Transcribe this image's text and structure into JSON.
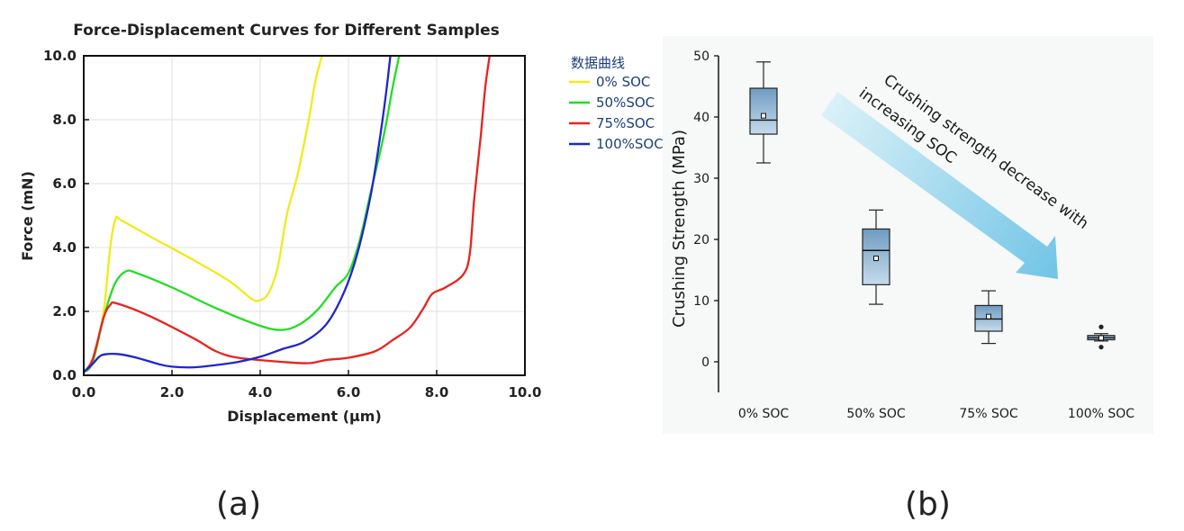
{
  "chart_data": [
    {
      "type": "line",
      "title": "Force-Displacement Curves for Different Samples",
      "xlabel": "Displacement (μm)",
      "ylabel": "Force (mN)",
      "xlim": [
        0,
        10
      ],
      "ylim": [
        0,
        10
      ],
      "xticks": [
        "0.0",
        "2.0",
        "4.0",
        "6.0",
        "8.0",
        "10.0"
      ],
      "yticks": [
        "0.0",
        "2.0",
        "4.0",
        "6.0",
        "8.0",
        "10.0"
      ],
      "grid": true,
      "legend": {
        "title": "数据曲线",
        "placement": "outside right"
      },
      "series": [
        {
          "name": "0% SOC",
          "color": "#f2ea1a",
          "points": [
            [
              0,
              0.1
            ],
            [
              0.2,
              0.4
            ],
            [
              0.45,
              2.0
            ],
            [
              0.6,
              4.0
            ],
            [
              0.72,
              4.9
            ],
            [
              0.85,
              4.85
            ],
            [
              1.5,
              4.35
            ],
            [
              2.5,
              3.6
            ],
            [
              3.3,
              2.95
            ],
            [
              3.8,
              2.4
            ],
            [
              4.0,
              2.35
            ],
            [
              4.2,
              2.6
            ],
            [
              4.4,
              3.4
            ],
            [
              4.6,
              5.0
            ],
            [
              4.85,
              6.3
            ],
            [
              5.1,
              8.0
            ],
            [
              5.25,
              9.2
            ],
            [
              5.4,
              10.0
            ]
          ]
        },
        {
          "name": "50%SOC",
          "color": "#22dd22",
          "points": [
            [
              0,
              0.1
            ],
            [
              0.2,
              0.4
            ],
            [
              0.45,
              1.8
            ],
            [
              0.7,
              2.85
            ],
            [
              0.95,
              3.25
            ],
            [
              1.2,
              3.2
            ],
            [
              2.0,
              2.75
            ],
            [
              3.0,
              2.1
            ],
            [
              4.0,
              1.55
            ],
            [
              4.5,
              1.42
            ],
            [
              4.9,
              1.6
            ],
            [
              5.3,
              2.05
            ],
            [
              5.7,
              2.75
            ],
            [
              6.0,
              3.2
            ],
            [
              6.25,
              4.2
            ],
            [
              6.5,
              5.7
            ],
            [
              6.8,
              7.5
            ],
            [
              7.0,
              9.0
            ],
            [
              7.15,
              10.0
            ]
          ]
        },
        {
          "name": "75%SOC",
          "color": "#e8231f",
          "points": [
            [
              0,
              0.1
            ],
            [
              0.2,
              0.5
            ],
            [
              0.45,
              1.8
            ],
            [
              0.6,
              2.2
            ],
            [
              0.75,
              2.25
            ],
            [
              1.5,
              1.85
            ],
            [
              2.5,
              1.15
            ],
            [
              3.0,
              0.75
            ],
            [
              3.5,
              0.55
            ],
            [
              4.5,
              0.42
            ],
            [
              5.1,
              0.38
            ],
            [
              5.5,
              0.48
            ],
            [
              6.0,
              0.55
            ],
            [
              6.6,
              0.75
            ],
            [
              7.0,
              1.1
            ],
            [
              7.4,
              1.5
            ],
            [
              7.7,
              2.1
            ],
            [
              7.9,
              2.55
            ],
            [
              8.2,
              2.75
            ],
            [
              8.6,
              3.15
            ],
            [
              8.75,
              3.8
            ],
            [
              8.85,
              5.5
            ],
            [
              9.0,
              7.5
            ],
            [
              9.1,
              9.0
            ],
            [
              9.2,
              10.0
            ]
          ]
        },
        {
          "name": "100%SOC",
          "color": "#1f26cc",
          "points": [
            [
              0,
              0.1
            ],
            [
              0.2,
              0.35
            ],
            [
              0.35,
              0.58
            ],
            [
              0.5,
              0.66
            ],
            [
              0.8,
              0.66
            ],
            [
              1.2,
              0.55
            ],
            [
              1.7,
              0.35
            ],
            [
              2.0,
              0.27
            ],
            [
              2.5,
              0.25
            ],
            [
              3.0,
              0.32
            ],
            [
              3.5,
              0.42
            ],
            [
              4.0,
              0.58
            ],
            [
              4.5,
              0.82
            ],
            [
              5.0,
              1.05
            ],
            [
              5.5,
              1.6
            ],
            [
              5.9,
              2.6
            ],
            [
              6.2,
              3.8
            ],
            [
              6.5,
              5.6
            ],
            [
              6.7,
              7.3
            ],
            [
              6.85,
              8.8
            ],
            [
              6.95,
              10.0
            ]
          ]
        }
      ]
    },
    {
      "type": "box",
      "ylabel": "Crushing Strength (MPa)",
      "categories": [
        "0% SOC",
        "50% SOC",
        "75% SOC",
        "100% SOC"
      ],
      "ylim": [
        -5,
        50
      ],
      "yticks": [
        "0",
        "10",
        "20",
        "30",
        "40",
        "50"
      ],
      "boxes": [
        {
          "min": 32.5,
          "q1": 37.2,
          "median": 39.5,
          "q3": 44.7,
          "max": 49,
          "mean": 40.2
        },
        {
          "min": 9.4,
          "q1": 12.6,
          "median": 18.2,
          "q3": 21.7,
          "max": 24.8,
          "mean": 16.9
        },
        {
          "min": 3.0,
          "q1": 5.0,
          "median": 7.0,
          "q3": 9.2,
          "max": 11.6,
          "mean": 7.4
        },
        {
          "min": 3.4,
          "q1": 3.6,
          "median": 3.9,
          "q3": 4.3,
          "max": 4.6,
          "mean": 3.9,
          "outliers": [
            2.4,
            5.7
          ]
        }
      ],
      "annotation": {
        "line1": "Crushing strength decrease with",
        "line2": "increasing SOC"
      },
      "box_color": "#7aa6c8"
    }
  ],
  "captions": {
    "a": "(a)",
    "b": "(b)"
  }
}
